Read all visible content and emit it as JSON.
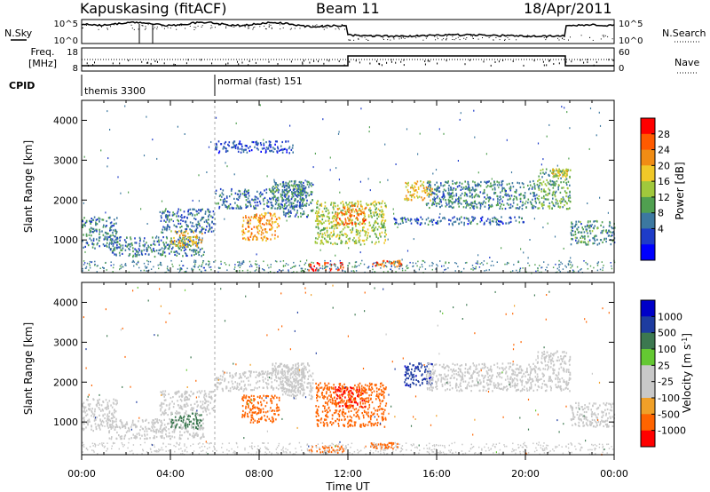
{
  "header": {
    "station": "Kapuskasing (fitACF)",
    "beam": "Beam 11",
    "date": "18/Apr/2011"
  },
  "summary": {
    "left_label_nsky": "N.Sky",
    "noise_tick_hi": "10^5",
    "noise_tick_lo": "10^0",
    "right_label_nsearch": "N.Search",
    "freq_label_1": "Freq.",
    "freq_label_2": "[MHz]",
    "freq_tick_hi": "18",
    "freq_tick_lo": "8",
    "nave_tick_hi": "60",
    "nave_tick_lo": "0",
    "right_label_nave": "Nave",
    "cpid_label": "CPID",
    "cpid_1": "themis 3300",
    "cpid_2": "normal (fast) 151"
  },
  "chart_data": [
    {
      "type": "heatmap",
      "title": "",
      "ylabel": "Slant Range [km]",
      "xlabel": "",
      "xlim_hours": [
        0,
        24
      ],
      "ylim": [
        180,
        4500
      ],
      "x_ticks": [
        "00:00",
        "04:00",
        "08:00",
        "12:00",
        "16:00",
        "20:00",
        "00:00"
      ],
      "y_ticks": [
        1000,
        2000,
        3000,
        4000
      ],
      "colorbar": {
        "label": "Power [dB]",
        "ticks": [
          "28",
          "24",
          "20",
          "16",
          "12",
          "8",
          "4"
        ],
        "range": [
          0,
          30
        ]
      },
      "regions": [
        {
          "t0": 0.0,
          "t1": 1.6,
          "r0": 800,
          "r1": 1600,
          "v": 9
        },
        {
          "t0": 1.2,
          "t1": 5.5,
          "r0": 600,
          "r1": 1100,
          "v": 9
        },
        {
          "t0": 4.0,
          "t1": 5.4,
          "r0": 850,
          "r1": 1250,
          "v": 19
        },
        {
          "t0": 3.5,
          "t1": 6.0,
          "r0": 1200,
          "r1": 1800,
          "v": 8
        },
        {
          "t0": 6.0,
          "t1": 10.0,
          "r0": 1800,
          "r1": 2300,
          "v": 8
        },
        {
          "t0": 7.2,
          "t1": 8.9,
          "r0": 1000,
          "r1": 1700,
          "v": 21
        },
        {
          "t0": 8.5,
          "t1": 10.0,
          "r0": 2100,
          "r1": 2500,
          "v": 10
        },
        {
          "t0": 9.0,
          "t1": 10.4,
          "r0": 1600,
          "r1": 2500,
          "v": 9
        },
        {
          "t0": 6.0,
          "t1": 9.5,
          "r0": 3200,
          "r1": 3500,
          "v": 6
        },
        {
          "t0": 10.5,
          "t1": 13.7,
          "r0": 900,
          "r1": 2000,
          "v": 15
        },
        {
          "t0": 11.4,
          "t1": 12.8,
          "r0": 1400,
          "r1": 1900,
          "v": 23
        },
        {
          "t0": 10.2,
          "t1": 11.8,
          "r0": 250,
          "r1": 450,
          "v": 28
        },
        {
          "t0": 13.0,
          "t1": 14.4,
          "r0": 350,
          "r1": 500,
          "v": 25
        },
        {
          "t0": 14.5,
          "t1": 15.8,
          "r0": 2000,
          "r1": 2500,
          "v": 19
        },
        {
          "t0": 15.5,
          "t1": 20.5,
          "r0": 1800,
          "r1": 2500,
          "v": 9
        },
        {
          "t0": 20.5,
          "t1": 22.0,
          "r0": 1800,
          "r1": 2800,
          "v": 12
        },
        {
          "t0": 21.2,
          "t1": 21.9,
          "r0": 2600,
          "r1": 2800,
          "v": 17
        },
        {
          "t0": 22.0,
          "t1": 24.0,
          "r0": 900,
          "r1": 1500,
          "v": 10
        },
        {
          "t0": 14.0,
          "t1": 20.0,
          "r0": 1400,
          "r1": 1600,
          "v": 7
        }
      ]
    },
    {
      "type": "heatmap",
      "title": "",
      "ylabel": "Slant Range [km]",
      "xlabel": "Time UT",
      "xlim_hours": [
        0,
        24
      ],
      "ylim": [
        180,
        4500
      ],
      "x_ticks": [
        "00:00",
        "04:00",
        "08:00",
        "12:00",
        "16:00",
        "20:00",
        "00:00"
      ],
      "y_ticks": [
        1000,
        2000,
        3000,
        4000
      ],
      "colorbar": {
        "label": "Velocity [m s^-1]",
        "ticks": [
          "1000",
          "500",
          "100",
          "25",
          "-25",
          "-100",
          "-500",
          "-1000"
        ]
      },
      "regions": [
        {
          "t0": 0.0,
          "t1": 1.6,
          "r0": 800,
          "r1": 1600,
          "v": 0
        },
        {
          "t0": 1.2,
          "t1": 5.5,
          "r0": 600,
          "r1": 1100,
          "v": 0
        },
        {
          "t0": 4.0,
          "t1": 5.4,
          "r0": 850,
          "r1": 1250,
          "v": 150
        },
        {
          "t0": 3.5,
          "t1": 6.0,
          "r0": 1200,
          "r1": 1800,
          "v": 0
        },
        {
          "t0": 6.0,
          "t1": 10.0,
          "r0": 1800,
          "r1": 2300,
          "v": 0
        },
        {
          "t0": 7.2,
          "t1": 8.9,
          "r0": 1000,
          "r1": 1700,
          "v": -300
        },
        {
          "t0": 8.5,
          "t1": 10.0,
          "r0": 2100,
          "r1": 2500,
          "v": 0
        },
        {
          "t0": 9.0,
          "t1": 10.4,
          "r0": 1600,
          "r1": 2500,
          "v": 0
        },
        {
          "t0": 10.5,
          "t1": 13.7,
          "r0": 900,
          "r1": 2000,
          "v": -300
        },
        {
          "t0": 11.4,
          "t1": 12.8,
          "r0": 1400,
          "r1": 1900,
          "v": -600
        },
        {
          "t0": 10.2,
          "t1": 11.8,
          "r0": 250,
          "r1": 450,
          "v": -300
        },
        {
          "t0": 13.0,
          "t1": 14.4,
          "r0": 350,
          "r1": 500,
          "v": -300
        },
        {
          "t0": 14.5,
          "t1": 15.8,
          "r0": 1900,
          "r1": 2500,
          "v": 600
        },
        {
          "t0": 15.5,
          "t1": 20.5,
          "r0": 1800,
          "r1": 2500,
          "v": 0
        },
        {
          "t0": 20.5,
          "t1": 22.0,
          "r0": 1800,
          "r1": 2800,
          "v": 0
        },
        {
          "t0": 22.0,
          "t1": 24.0,
          "r0": 900,
          "r1": 1500,
          "v": 0
        }
      ]
    }
  ],
  "colors": {
    "power_scale": [
      "#0000ff",
      "#1e3cc8",
      "#3c78a0",
      "#50a050",
      "#a0c83c",
      "#f0c828",
      "#f08c14",
      "#ff5a00",
      "#ff0000"
    ],
    "velocity_scale": [
      "#0000c8",
      "#1e3ca0",
      "#3c7850",
      "#64c832",
      "#c8c8c8",
      "#c8c8c8",
      "#f0a028",
      "#ff6400",
      "#ff0000"
    ]
  }
}
